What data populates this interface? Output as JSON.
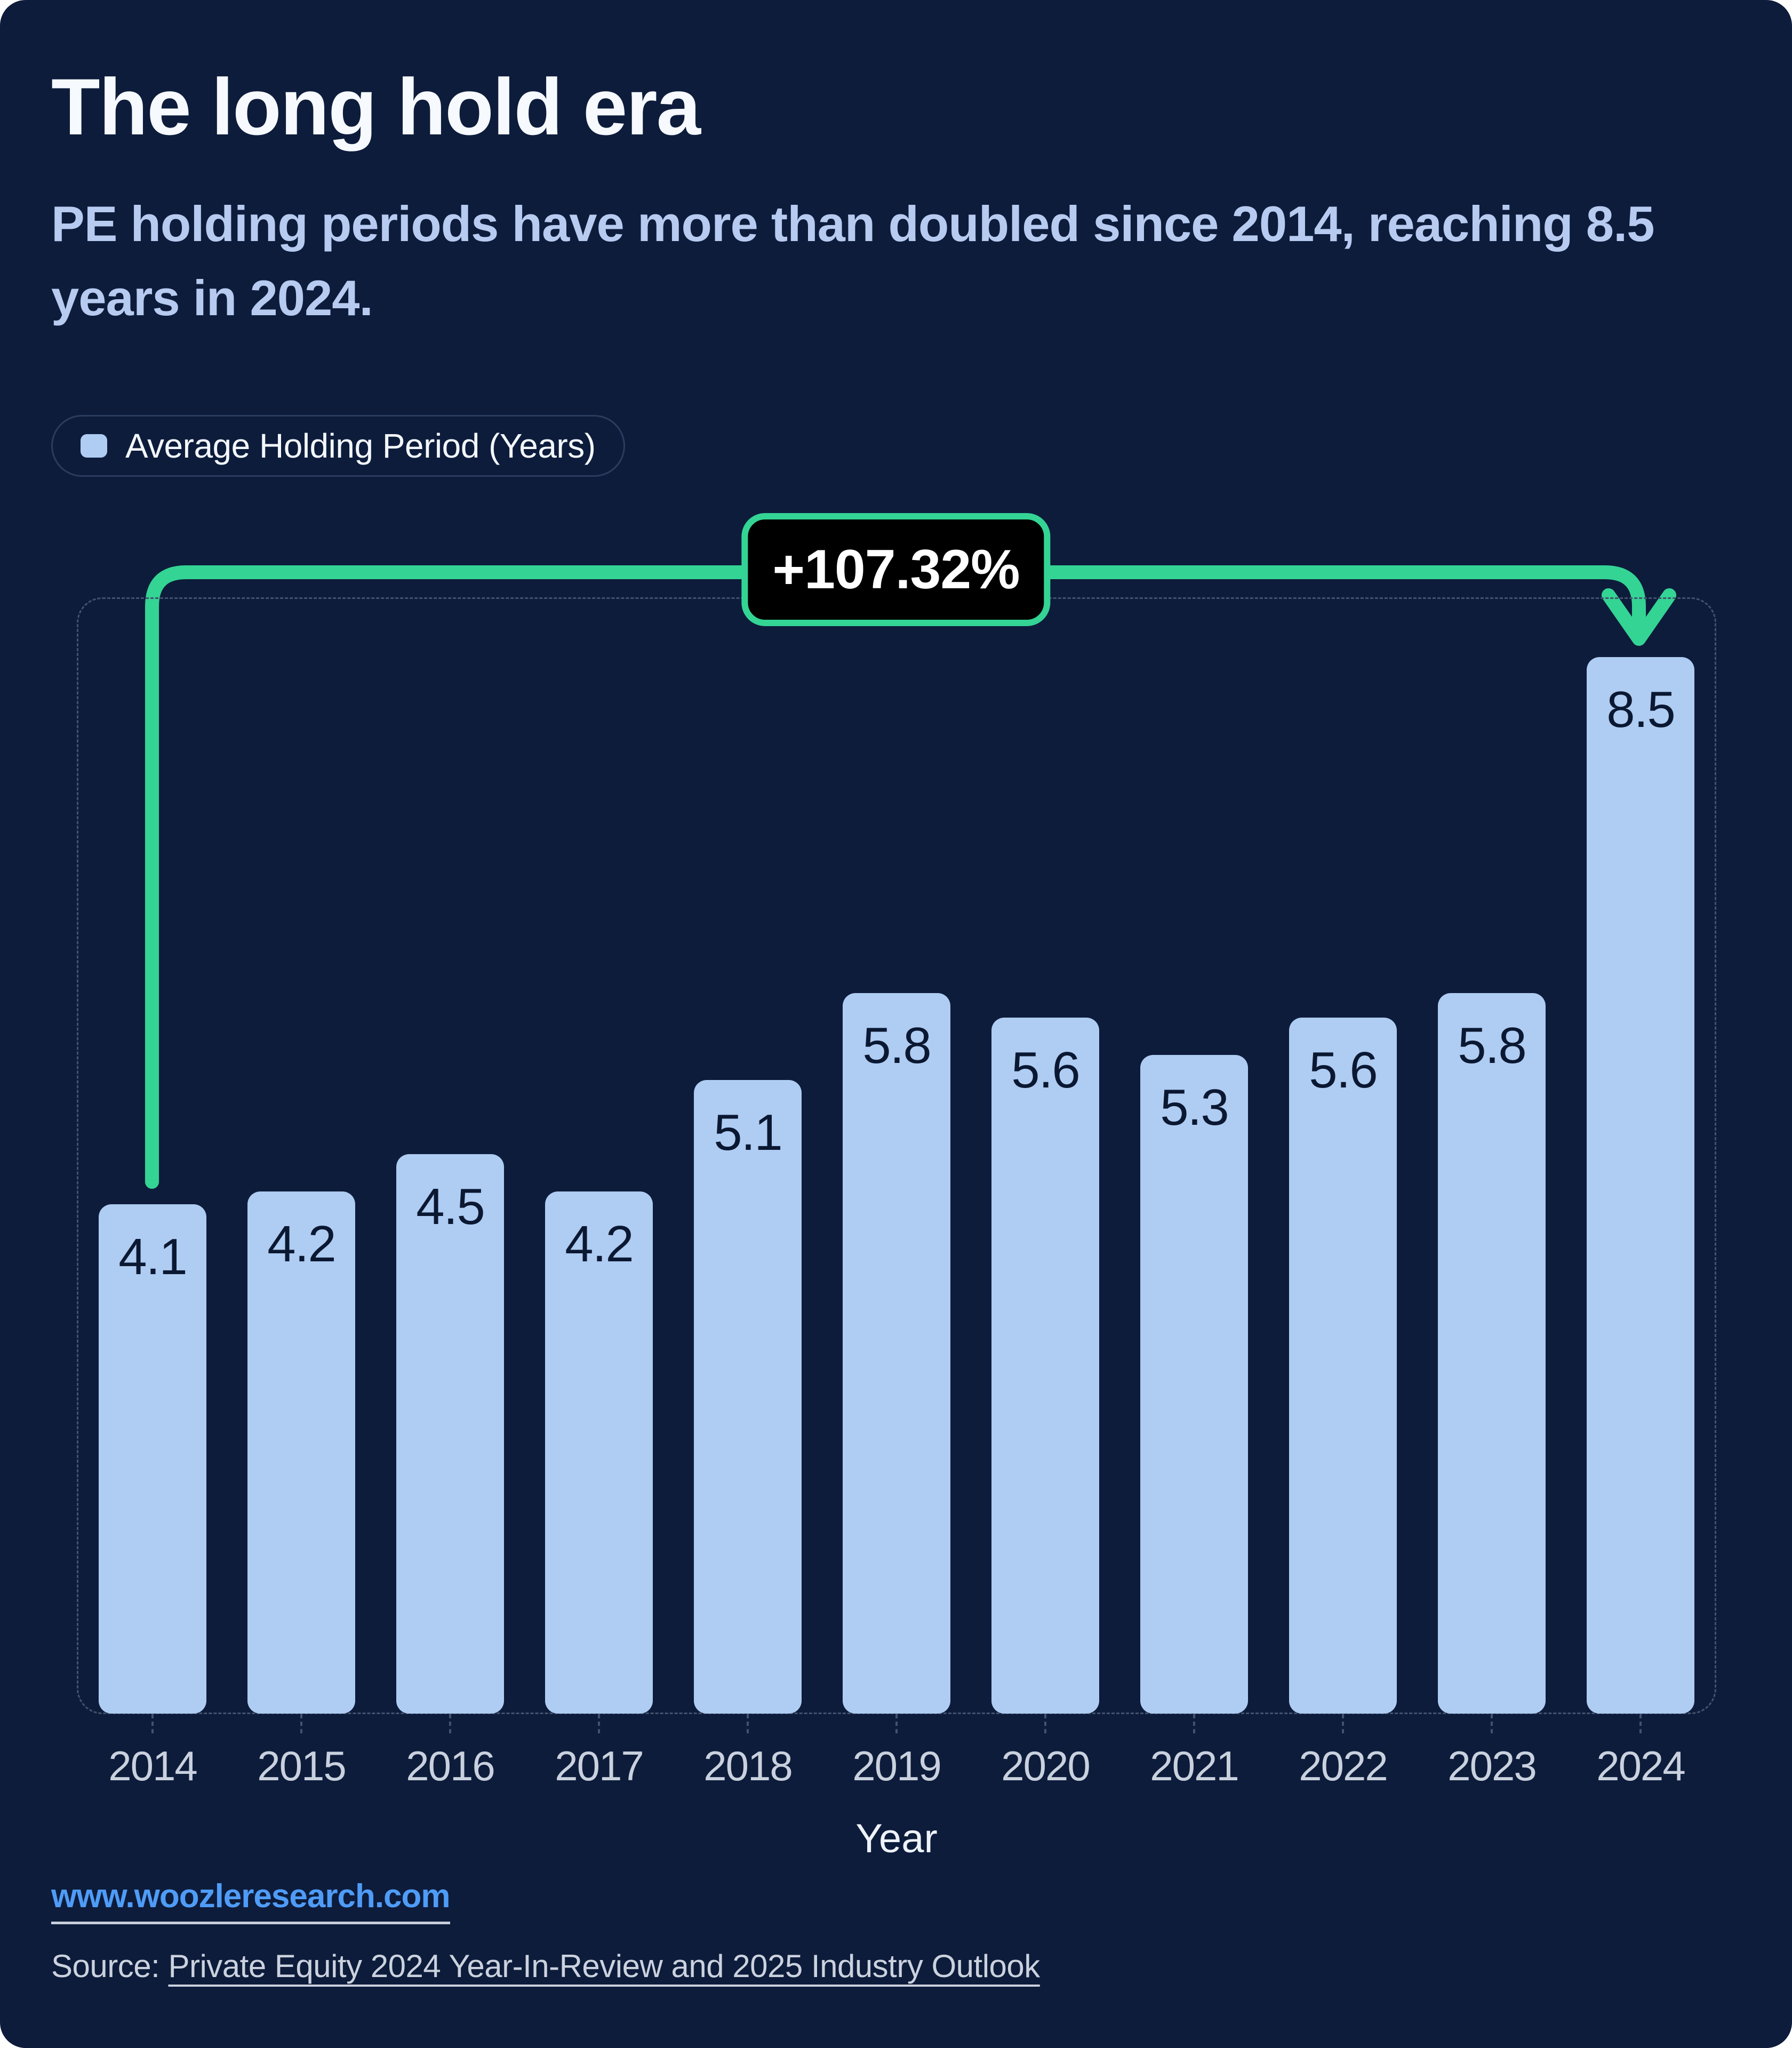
{
  "header": {
    "title": "The long hold era",
    "subtitle": "PE holding periods have more than doubled since 2014, reaching 8.5 years in 2024."
  },
  "legend": {
    "label": "Average Holding Period (Years)"
  },
  "annotation": {
    "change_label": "+107.32%",
    "color": "#34D494",
    "from_year": "2014",
    "to_year": "2024"
  },
  "chart_data": {
    "type": "bar",
    "title": "The long hold era",
    "series_name": "Average Holding Period (Years)",
    "categories": [
      "2014",
      "2015",
      "2016",
      "2017",
      "2018",
      "2019",
      "2020",
      "2021",
      "2022",
      "2023",
      "2024"
    ],
    "values": [
      4.1,
      4.2,
      4.5,
      4.2,
      5.1,
      5.8,
      5.6,
      5.3,
      5.6,
      5.8,
      8.5
    ],
    "xlabel": "Year",
    "ylabel": "Average Holding Period (Years)",
    "ylim": [
      0,
      9.0
    ],
    "grid": false,
    "legend_position": "top-left",
    "bar_color": "#AFCCF2",
    "value_label_color": "#0B1832",
    "background_color": "#0D1C3B"
  },
  "footer": {
    "website": "www.woozleresearch.com",
    "source_prefix": "Source: ",
    "source_link": "Private Equity 2024 Year-In-Review and 2025 Industry Outlook"
  }
}
